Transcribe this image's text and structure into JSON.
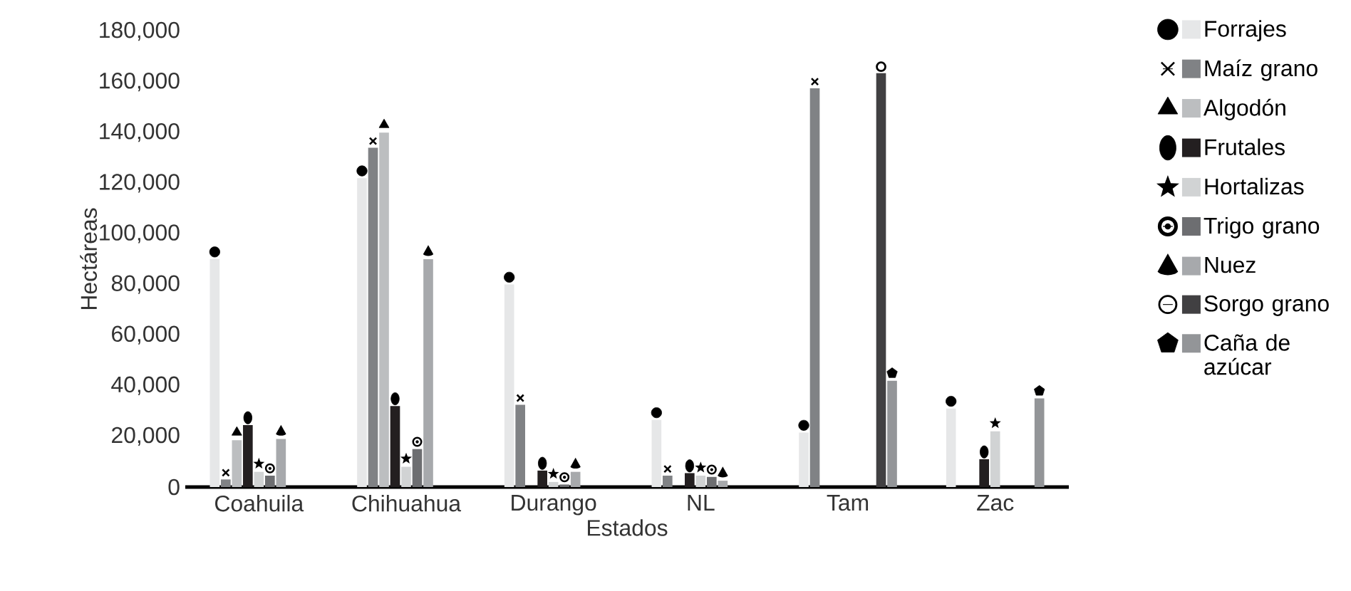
{
  "chart_data": {
    "type": "bar",
    "xlabel": "Estados",
    "ylabel": "Hectáreas",
    "categories": [
      "Coahuila",
      "Chihuahua",
      "Durango",
      "NL",
      "Tam",
      "Zac"
    ],
    "ylim": [
      0,
      180000
    ],
    "yticks": [
      {
        "value": 0,
        "label": "0"
      },
      {
        "value": 20000,
        "label": "20,000"
      },
      {
        "value": 40000,
        "label": "40,000"
      },
      {
        "value": 60000,
        "label": "60,000"
      },
      {
        "value": 80000,
        "label": "80,000"
      },
      {
        "value": 100000,
        "label": "100,000"
      },
      {
        "value": 120000,
        "label": "120,000"
      },
      {
        "value": 140000,
        "label": "140,000"
      },
      {
        "value": 160000,
        "label": "160,000"
      },
      {
        "value": 180000,
        "label": "180,000"
      }
    ],
    "grid": false,
    "legend": "right",
    "series": [
      {
        "name": "Forrajes",
        "color": "#e6e7e8",
        "marker": "circle",
        "values": [
          90000,
          122000,
          80000,
          26500,
          21500,
          31000
        ]
      },
      {
        "name": "Maíz grano",
        "color": "#808285",
        "marker": "cross",
        "values": [
          3000,
          134000,
          32500,
          4500,
          157500,
          null
        ]
      },
      {
        "name": "Algodón",
        "color": "#bcbec0",
        "marker": "triangle",
        "values": [
          18500,
          140000,
          null,
          null,
          null,
          null
        ]
      },
      {
        "name": "Frutales",
        "color": "#231f20",
        "marker": "ellipse",
        "values": [
          24500,
          32000,
          6500,
          5500,
          null,
          11000
        ]
      },
      {
        "name": "Hortalizas",
        "color": "#d1d3d4",
        "marker": "star",
        "values": [
          6000,
          8000,
          2000,
          4500,
          null,
          22000
        ]
      },
      {
        "name": "Trigo grano",
        "color": "#6d6e71",
        "marker": "target",
        "values": [
          4500,
          15000,
          1000,
          4000,
          null,
          null
        ]
      },
      {
        "name": "Nuez",
        "color": "#a7a9ac",
        "marker": "cone",
        "values": [
          19000,
          90000,
          6000,
          2500,
          null,
          null
        ]
      },
      {
        "name": "Sorgo grano",
        "color": "#414042",
        "marker": "ring",
        "values": [
          null,
          null,
          null,
          null,
          163500,
          null
        ]
      },
      {
        "name": "Caña de azúcar",
        "color": "#939598",
        "marker": "pentagon",
        "values": [
          null,
          null,
          null,
          null,
          42000,
          35000
        ]
      }
    ]
  }
}
